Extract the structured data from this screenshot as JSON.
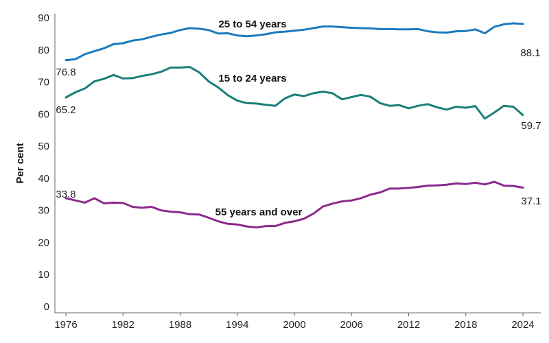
{
  "chart_data": {
    "type": "line",
    "title": "",
    "xlabel": "",
    "ylabel": "Per cent",
    "ylim": [
      0,
      90
    ],
    "yticks": [
      0,
      10,
      20,
      30,
      40,
      50,
      60,
      70,
      80,
      90
    ],
    "xlim": [
      1976,
      2024
    ],
    "xticks": [
      1976,
      1982,
      1988,
      1994,
      2000,
      2006,
      2012,
      2018,
      2024
    ],
    "grid": false,
    "colors": {
      "series_25_54": "#1a7abf",
      "series_15_24": "#1a7f78",
      "series_55_over": "#8a2a8e",
      "axis": "#666666"
    },
    "x": [
      1976,
      1977,
      1978,
      1979,
      1980,
      1981,
      1982,
      1983,
      1984,
      1985,
      1986,
      1987,
      1988,
      1989,
      1990,
      1991,
      1992,
      1993,
      1994,
      1995,
      1996,
      1997,
      1998,
      1999,
      2000,
      2001,
      2002,
      2003,
      2004,
      2005,
      2006,
      2007,
      2008,
      2009,
      2010,
      2011,
      2012,
      2013,
      2014,
      2015,
      2016,
      2017,
      2018,
      2019,
      2020,
      2021,
      2022,
      2023,
      2024
    ],
    "series": [
      {
        "key": "series_25_54",
        "name": "25 to 54 years",
        "values": [
          76.8,
          77.1,
          78.7,
          79.6,
          80.5,
          81.8,
          82.1,
          82.9,
          83.3,
          84.1,
          84.8,
          85.3,
          86.2,
          86.8,
          86.6,
          86.2,
          85.1,
          85.2,
          84.5,
          84.3,
          84.5,
          84.9,
          85.5,
          85.7,
          86.0,
          86.3,
          86.8,
          87.3,
          87.3,
          87.1,
          86.9,
          86.8,
          86.7,
          86.5,
          86.5,
          86.4,
          86.4,
          86.5,
          85.8,
          85.5,
          85.4,
          85.8,
          85.9,
          86.4,
          85.2,
          87.2,
          88.0,
          88.3,
          88.1
        ],
        "label_start": "76.8",
        "label_end": "88.1"
      },
      {
        "key": "series_15_24",
        "name": "15 to 24 years",
        "values": [
          65.2,
          66.8,
          68.0,
          70.2,
          71.0,
          72.2,
          71.1,
          71.2,
          71.9,
          72.4,
          73.2,
          74.5,
          74.5,
          74.7,
          73.0,
          70.2,
          68.3,
          65.9,
          64.2,
          63.4,
          63.3,
          62.9,
          62.6,
          64.9,
          66.1,
          65.6,
          66.5,
          67.0,
          66.5,
          64.6,
          65.3,
          66.0,
          65.4,
          63.4,
          62.6,
          62.8,
          61.8,
          62.6,
          63.1,
          62.1,
          61.4,
          62.3,
          62.0,
          62.5,
          58.6,
          60.5,
          62.6,
          62.3,
          59.7
        ],
        "label_start": "65.2",
        "label_end": "59.7"
      },
      {
        "key": "series_55_over",
        "name": "55 years and over",
        "values": [
          33.8,
          33.1,
          32.4,
          33.8,
          32.2,
          32.4,
          32.3,
          31.1,
          30.8,
          31.1,
          30.0,
          29.6,
          29.4,
          28.8,
          28.7,
          27.7,
          26.6,
          25.8,
          25.6,
          25.0,
          24.7,
          25.1,
          25.1,
          26.1,
          26.6,
          27.4,
          29.0,
          31.2,
          32.1,
          32.8,
          33.1,
          33.8,
          34.9,
          35.6,
          36.8,
          36.8,
          37.0,
          37.3,
          37.7,
          37.8,
          38.0,
          38.4,
          38.2,
          38.6,
          38.1,
          38.9,
          37.7,
          37.6,
          37.1
        ],
        "label_start": "33.8",
        "label_end": "37.1"
      }
    ]
  }
}
